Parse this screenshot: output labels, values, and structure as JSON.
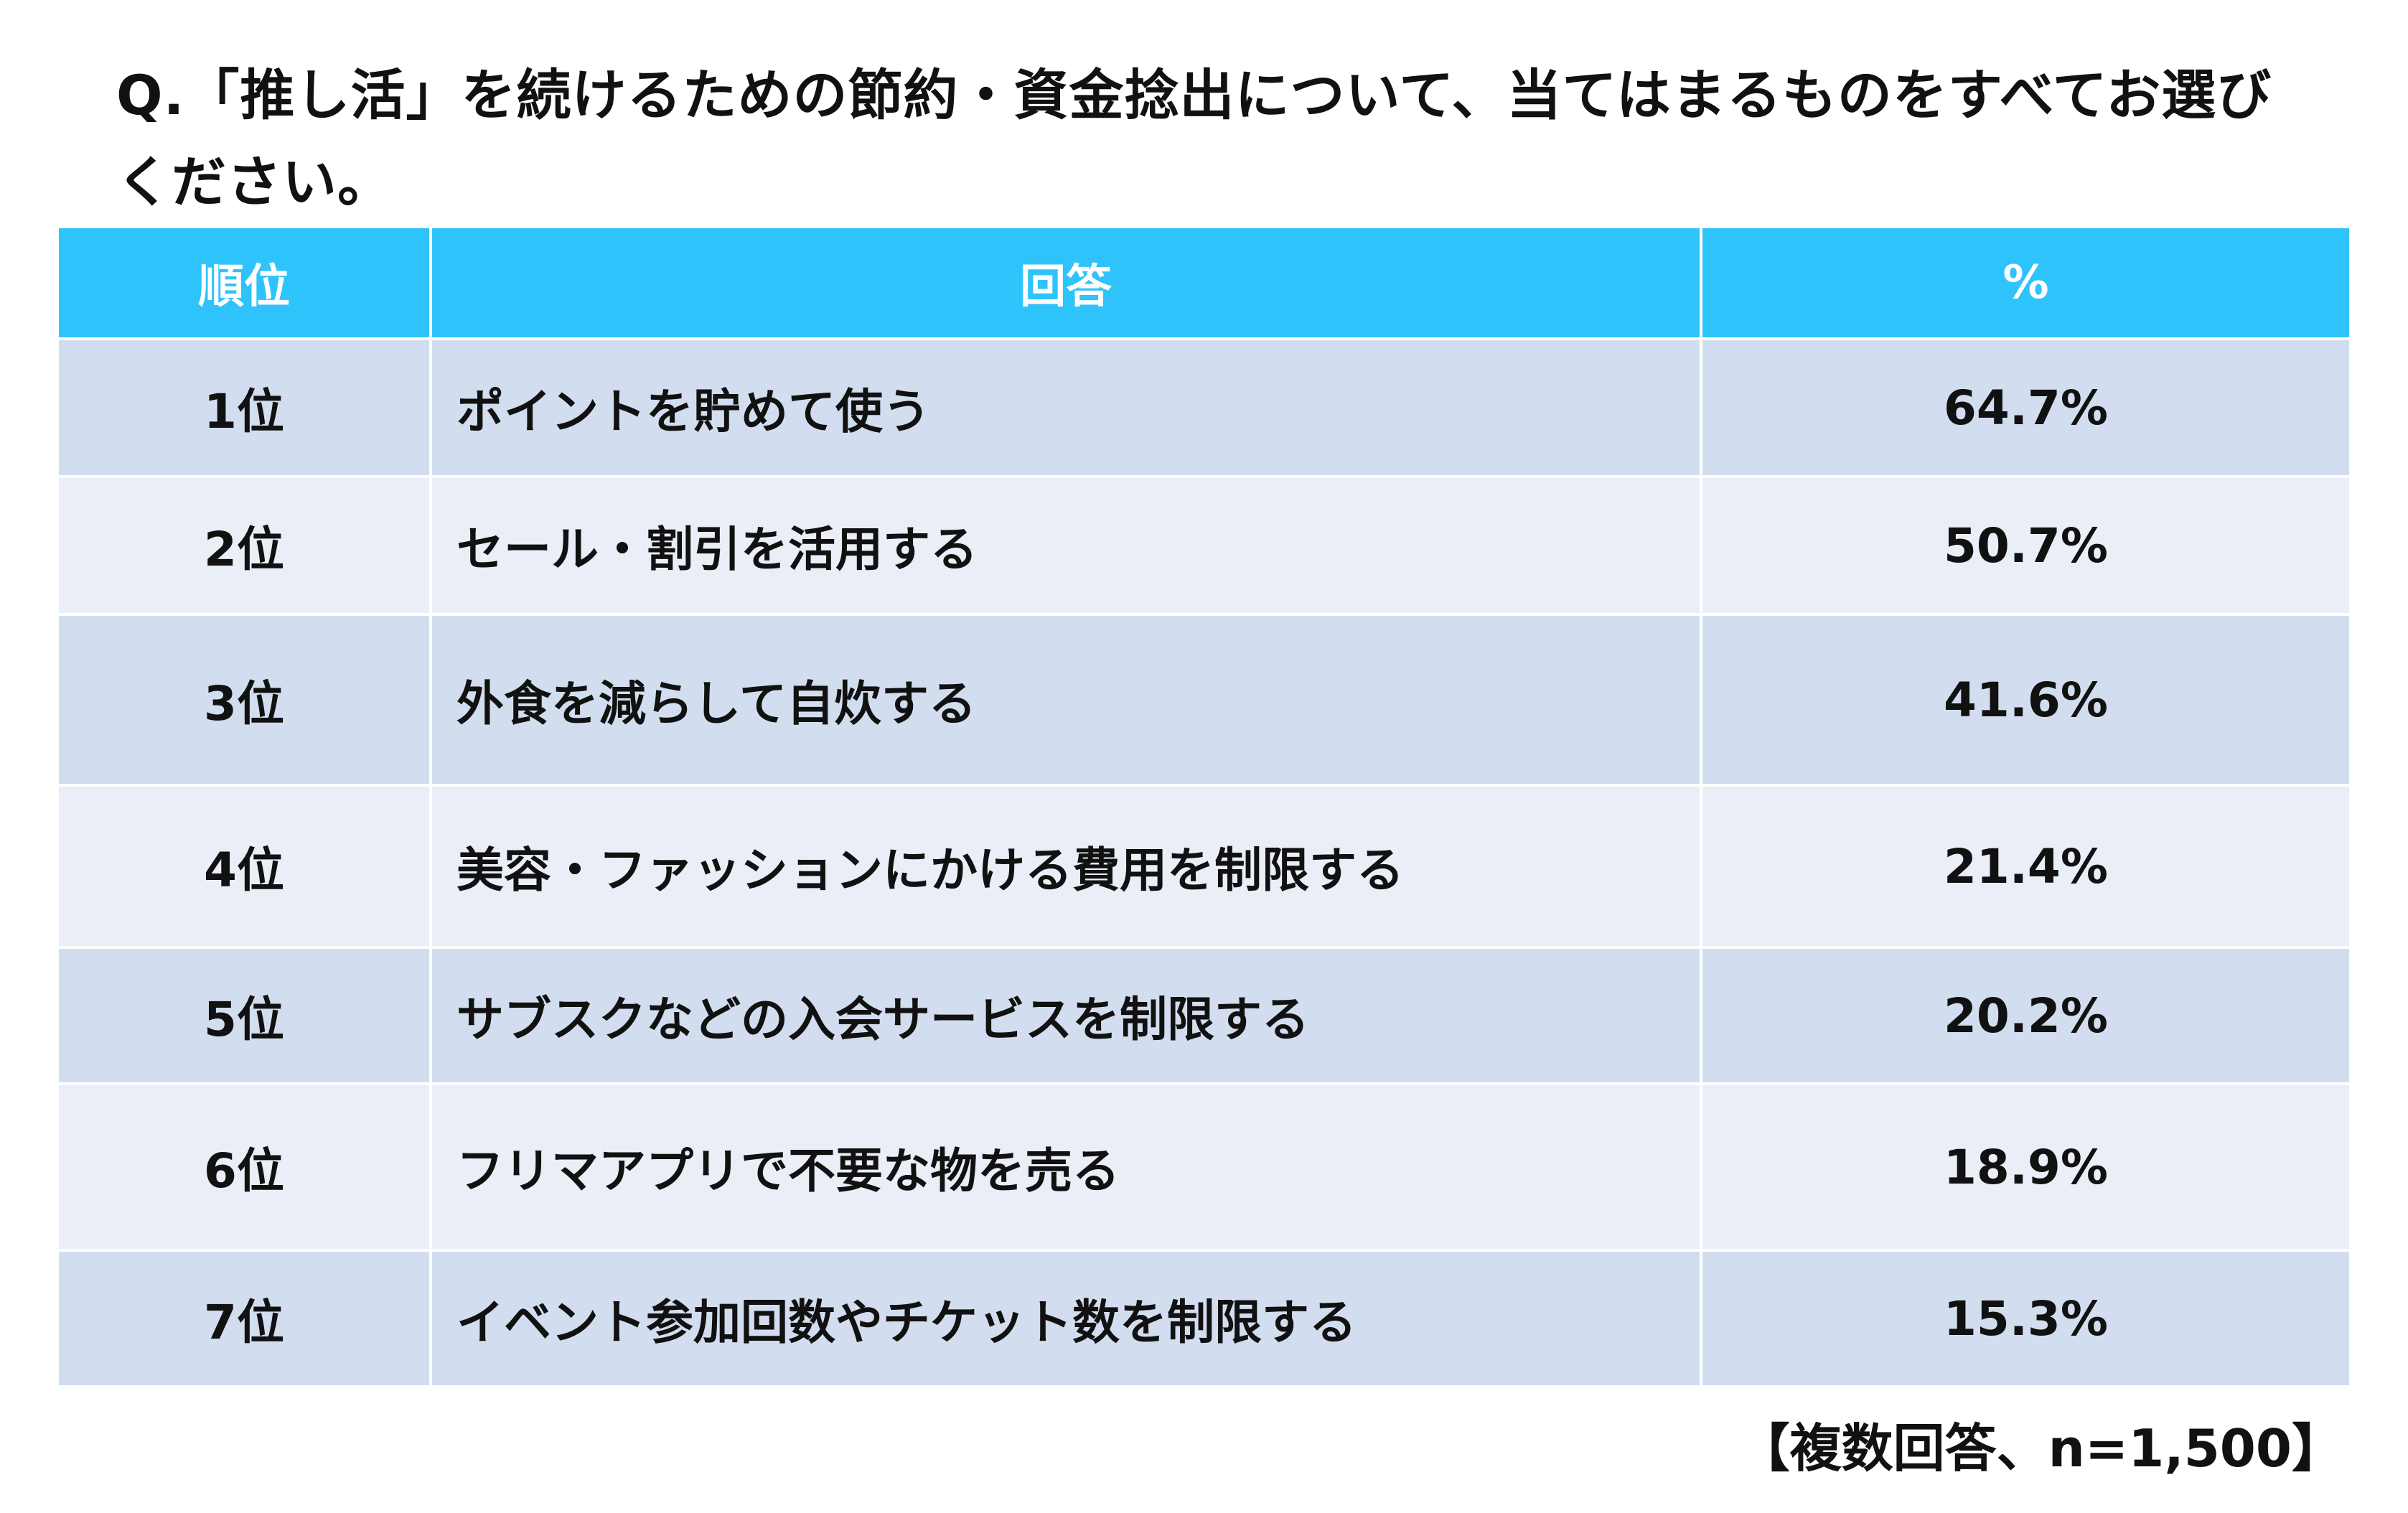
{
  "question": "Q.「推し活」を続けるための節約・資金捻出について、当てはまるものをすべてお選びください。",
  "table": {
    "headers": {
      "rank": "順位",
      "answer": "回答",
      "percent": "%"
    },
    "rows": [
      {
        "rank": "1位",
        "answer": "ポイントを貯めて使う",
        "percent": "64.7%"
      },
      {
        "rank": "2位",
        "answer": "セール・割引を活用する",
        "percent": "50.7%"
      },
      {
        "rank": "3位",
        "answer": "外食を減らして自炊する",
        "percent": "41.6%"
      },
      {
        "rank": "4位",
        "answer": "美容・ファッションにかける費用を制限する",
        "percent": "21.4%"
      },
      {
        "rank": "5位",
        "answer": "サブスクなどの入会サービスを制限する",
        "percent": "20.2%"
      },
      {
        "rank": "6位",
        "answer": "フリマアプリで不要な物を売る",
        "percent": "18.9%"
      },
      {
        "rank": "7位",
        "answer": "イベント参加回数やチケット数を制限する",
        "percent": "15.3%"
      }
    ]
  },
  "footnote": "【複数回答、n=1,500】",
  "colors": {
    "header": "#2ec4fb",
    "row_odd": "#d2ddef",
    "row_even": "#e9eef7",
    "text": "#111111"
  }
}
